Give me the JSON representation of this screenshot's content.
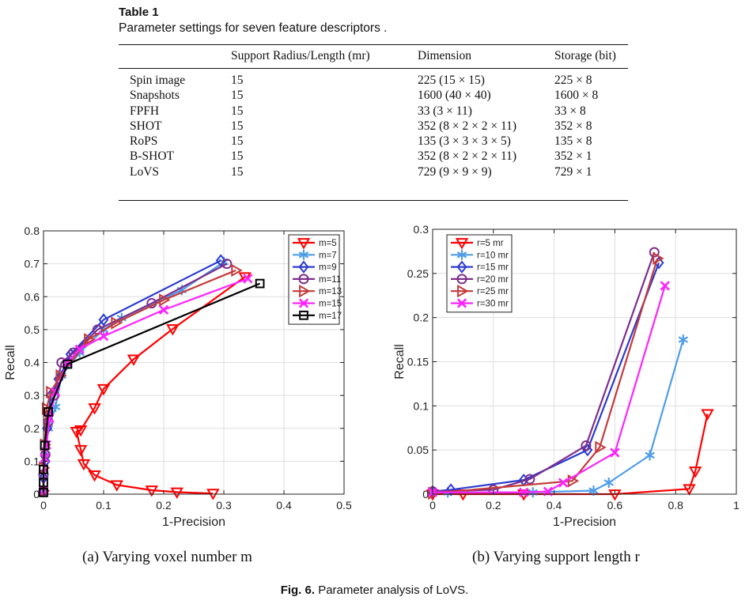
{
  "table": {
    "label": "Table 1",
    "title": "Parameter settings for seven feature descriptors .",
    "headers": [
      "",
      "Support Radius/Length (mr)",
      "Dimension",
      "Storage (bit)"
    ],
    "rows": [
      [
        "Spin image",
        "15",
        "225 (15 × 15)",
        "225 × 8"
      ],
      [
        "Snapshots",
        "15",
        "1600 (40 × 40)",
        "1600 × 8"
      ],
      [
        "FPFH",
        "15",
        "33 (3 × 11)",
        "33 × 8"
      ],
      [
        "SHOT",
        "15",
        "352 (8 × 2 × 2 × 11)",
        "352 × 8"
      ],
      [
        "RoPS",
        "15",
        "135 (3 × 3 × 3 × 5)",
        "135 × 8"
      ],
      [
        "B-SHOT",
        "15",
        "352 (8 × 2 × 2 × 11)",
        "352 × 1"
      ],
      [
        "LoVS",
        "15",
        "729 (9 × 9 × 9)",
        "729 × 1"
      ]
    ]
  },
  "subcaptions": {
    "a": "(a)  Varying voxel number m",
    "b": "(b)  Varying support length r"
  },
  "figure_caption": {
    "label": "Fig. 6.",
    "text": "Parameter analysis of LoVS."
  },
  "chart_data": [
    {
      "type": "line",
      "xlabel": "1-Precision",
      "ylabel": "Recall",
      "xlim": [
        0,
        0.5
      ],
      "ylim": [
        0,
        0.8
      ],
      "xticks": [
        "0",
        "0.1",
        "0.2",
        "0.3",
        "0.4",
        "0.5"
      ],
      "yticks": [
        "0",
        "0.1",
        "0.2",
        "0.3",
        "0.4",
        "0.5",
        "0.6",
        "0.7",
        "0.8"
      ],
      "grid": true,
      "legend": "top-right",
      "series": [
        {
          "name": "m=5",
          "color": "#ff0000",
          "marker": "triangle-down",
          "x": [
            0.282,
            0.222,
            0.18,
            0.122,
            0.085,
            0.067,
            0.062,
            0.055,
            0.062,
            0.085,
            0.1,
            0.15,
            0.215,
            0.335
          ],
          "y": [
            0.002,
            0.006,
            0.012,
            0.028,
            0.058,
            0.092,
            0.135,
            0.19,
            0.195,
            0.262,
            0.32,
            0.41,
            0.502,
            0.66
          ]
        },
        {
          "name": "m=7",
          "color": "#4f9de9",
          "marker": "asterisk",
          "x": [
            0.0,
            0.0,
            0.003,
            0.008,
            0.02,
            0.03,
            0.06,
            0.1,
            0.13,
            0.23,
            0.3
          ],
          "y": [
            0.008,
            0.05,
            0.12,
            0.2,
            0.265,
            0.36,
            0.43,
            0.5,
            0.535,
            0.62,
            0.705
          ]
        },
        {
          "name": "m=9",
          "color": "#2d3bd0",
          "marker": "diamond",
          "x": [
            0.0,
            0.0,
            0.003,
            0.006,
            0.012,
            0.025,
            0.045,
            0.1,
            0.295
          ],
          "y": [
            0.01,
            0.05,
            0.1,
            0.2,
            0.3,
            0.35,
            0.425,
            0.53,
            0.71
          ]
        },
        {
          "name": "m=11",
          "color": "#7d2e8c",
          "marker": "circle",
          "x": [
            0.0,
            0.0,
            0.003,
            0.008,
            0.018,
            0.03,
            0.05,
            0.09,
            0.18,
            0.305
          ],
          "y": [
            0.01,
            0.06,
            0.12,
            0.22,
            0.3,
            0.4,
            0.43,
            0.5,
            0.58,
            0.7
          ]
        },
        {
          "name": "m=13",
          "color": "#c43a3a",
          "marker": "triangle-right",
          "x": [
            0.0,
            0.0,
            0.002,
            0.005,
            0.012,
            0.028,
            0.075,
            0.12,
            0.2,
            0.32
          ],
          "y": [
            0.01,
            0.08,
            0.15,
            0.26,
            0.31,
            0.36,
            0.47,
            0.52,
            0.59,
            0.68
          ]
        },
        {
          "name": "m=15",
          "color": "#ff22ff",
          "marker": "cross",
          "x": [
            0.0,
            0.002,
            0.005,
            0.01,
            0.02,
            0.04,
            0.06,
            0.1,
            0.2,
            0.34
          ],
          "y": [
            0.01,
            0.11,
            0.15,
            0.23,
            0.31,
            0.4,
            0.44,
            0.48,
            0.56,
            0.655
          ]
        },
        {
          "name": "m=17",
          "color": "#000000",
          "marker": "square",
          "x": [
            0.0,
            0.0,
            0.0,
            0.002,
            0.008,
            0.04,
            0.36
          ],
          "y": [
            0.005,
            0.035,
            0.075,
            0.148,
            0.25,
            0.395,
            0.64
          ]
        }
      ]
    },
    {
      "type": "line",
      "xlabel": "1-Precision",
      "ylabel": "Recall",
      "xlim": [
        0,
        1
      ],
      "ylim": [
        0,
        0.3
      ],
      "xticks": [
        "0",
        "0.2",
        "0.4",
        "0.6",
        "0.8",
        "1"
      ],
      "yticks": [
        "0",
        "0.05",
        "0.1",
        "0.15",
        "0.2",
        "0.25",
        "0.3"
      ],
      "grid": true,
      "legend": "top-left",
      "series": [
        {
          "name": "r=5 mr",
          "color": "#ff0000",
          "marker": "triangle-down",
          "x": [
            0.0,
            0.1,
            0.3,
            0.6,
            0.845,
            0.865,
            0.905
          ],
          "y": [
            0.0,
            0.0,
            0.0,
            0.0,
            0.006,
            0.026,
            0.091
          ]
        },
        {
          "name": "r=10 mr",
          "color": "#4f9de9",
          "marker": "asterisk",
          "x": [
            0.0,
            0.05,
            0.33,
            0.53,
            0.58,
            0.715,
            0.825
          ],
          "y": [
            0.002,
            0.002,
            0.002,
            0.004,
            0.013,
            0.044,
            0.175
          ]
        },
        {
          "name": "r=15 mr",
          "color": "#2d3bd0",
          "marker": "diamond",
          "x": [
            0.0,
            0.06,
            0.3,
            0.51,
            0.745
          ],
          "y": [
            0.003,
            0.005,
            0.016,
            0.05,
            0.262
          ]
        },
        {
          "name": "r=20 mr",
          "color": "#7d2e8c",
          "marker": "circle",
          "x": [
            0.0,
            0.2,
            0.32,
            0.505,
            0.73
          ],
          "y": [
            0.003,
            0.005,
            0.017,
            0.055,
            0.274
          ]
        },
        {
          "name": "r=25 mr",
          "color": "#c43a3a",
          "marker": "triangle-right",
          "x": [
            0.0,
            0.46,
            0.55,
            0.74
          ],
          "y": [
            0.001,
            0.015,
            0.053,
            0.267
          ]
        },
        {
          "name": "r=30 mr",
          "color": "#ff22ff",
          "marker": "cross",
          "x": [
            0.0,
            0.3,
            0.38,
            0.43,
            0.6,
            0.765
          ],
          "y": [
            0.002,
            0.002,
            0.003,
            0.013,
            0.047,
            0.236
          ]
        }
      ]
    }
  ]
}
